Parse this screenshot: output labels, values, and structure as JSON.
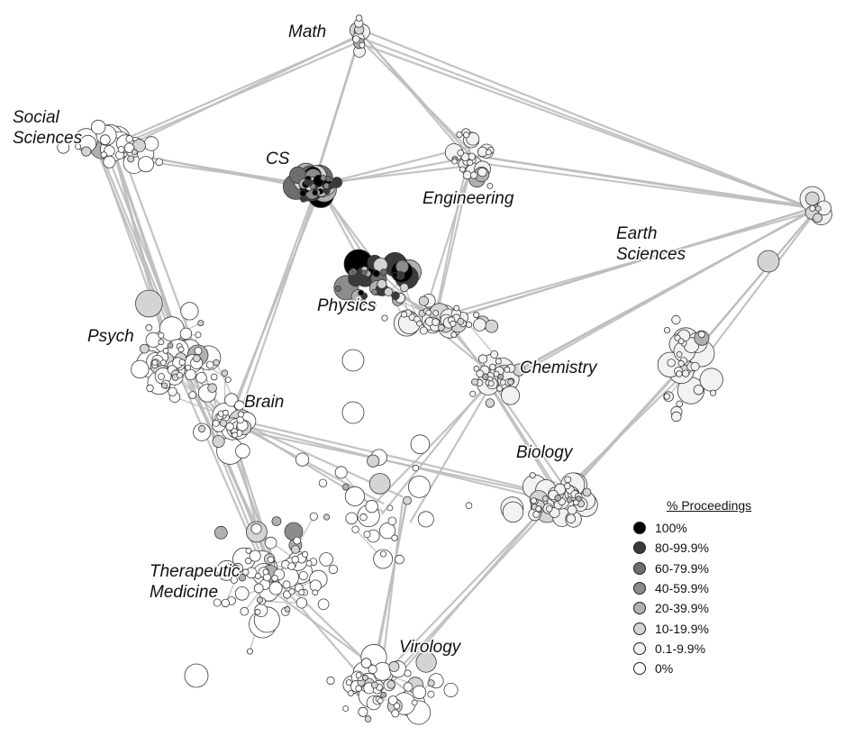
{
  "regions": {
    "math": "Math",
    "social_sciences_1": "Social",
    "social_sciences_2": "Sciences",
    "cs": "CS",
    "engineering": "Engineering",
    "earth_sciences_1": "Earth",
    "earth_sciences_2": "Sciences",
    "physics": "Physics",
    "psych": "Psych",
    "chemistry": "Chemistry",
    "brain": "Brain",
    "biology": "Biology",
    "therapeutic_medicine_1": "Therapeutic",
    "therapeutic_medicine_2": "Medicine",
    "virology": "Virology"
  },
  "legend": {
    "title": "% Proceedings",
    "items": [
      {
        "label": "100%",
        "color": "#000000"
      },
      {
        "label": "80-99.9%",
        "color": "#3a3a3a"
      },
      {
        "label": "60-79.9%",
        "color": "#6e6e6e"
      },
      {
        "label": "40-59.9%",
        "color": "#8c8c8c"
      },
      {
        "label": "20-39.9%",
        "color": "#b0b0b0"
      },
      {
        "label": "10-19.9%",
        "color": "#d4d4d4"
      },
      {
        "label": "0.1-9.9%",
        "color": "#f2f2f2"
      },
      {
        "label": "0%",
        "color": "#ffffff"
      }
    ]
  }
}
